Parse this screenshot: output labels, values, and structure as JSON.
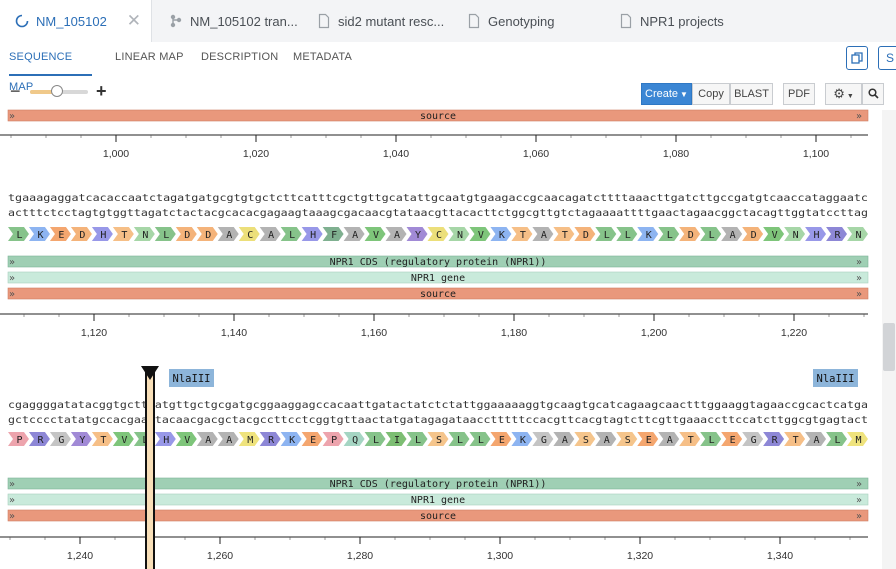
{
  "tabs": [
    {
      "label": "NM_105102",
      "icon": "circular-plasmid-icon",
      "active": true
    },
    {
      "label": "NM_105102 tran...",
      "icon": "branch-icon",
      "active": false
    },
    {
      "label": "sid2 mutant resc...",
      "icon": "document-icon",
      "active": false
    },
    {
      "label": "Genotyping",
      "icon": "document-icon",
      "active": false
    },
    {
      "label": "NPR1 projects",
      "icon": "document-icon",
      "active": false
    }
  ],
  "subnav": [
    "SEQUENCE MAP",
    "LINEAR MAP",
    "DESCRIPTION",
    "METADATA"
  ],
  "top_right": {
    "copy_icon": "copy-icon",
    "s_label": "S"
  },
  "toolbar": {
    "zoom_minus": "−",
    "zoom_plus": "+",
    "zoom_level": 0.47,
    "create": "Create",
    "copy": "Copy",
    "blast": "BLAST",
    "pdf": "PDF",
    "settings_icon": "gear-icon",
    "search_icon": "search-icon"
  },
  "colors": {
    "accent": "#2c6fb7",
    "source": "#e9987c",
    "cds": "#9fcfb4",
    "gene": "#c9eadb",
    "enzyme": "#8db5da"
  },
  "sequence_map": {
    "block0": {
      "annotations": [
        {
          "label": "source",
          "type": "source"
        }
      ],
      "ticks": [
        "1,000",
        "1,020",
        "1,040",
        "1,060",
        "1,080",
        "1,100"
      ]
    },
    "block1": {
      "top": "tgaaagaggatcacaccaatctagatgatgcgtgtgctcttcatttcgctgttgcatattgcaatgtgaagaccgcaacagatcttttaaacttgatcttgccgatgtcaaccataggaatc",
      "bottom": "actttctcctagtgtggttagatctactacgcacacgagaagtaaagcgacaacgtataacgttacacttctggcgttgtctagaaaattttgaactagaacggctacagttggtatccttag",
      "aa": [
        "L",
        "K",
        "E",
        "D",
        "H",
        "T",
        "N",
        "L",
        "D",
        "D",
        "A",
        "C",
        "A",
        "L",
        "H",
        "F",
        "A",
        "V",
        "A",
        "Y",
        "C",
        "N",
        "V",
        "K",
        "T",
        "A",
        "T",
        "D",
        "L",
        "L",
        "K",
        "L",
        "D",
        "L",
        "A",
        "D",
        "V",
        "N",
        "H",
        "R",
        "N"
      ],
      "annotations": [
        {
          "label": "NPR1 CDS (regulatory protein (NPR1))",
          "type": "cds"
        },
        {
          "label": "NPR1 gene",
          "type": "gene"
        },
        {
          "label": "source",
          "type": "source"
        }
      ],
      "ticks": [
        "1,120",
        "1,140",
        "1,160",
        "1,180",
        "1,200",
        "1,220"
      ]
    },
    "block2": {
      "enzymes": [
        "NlaIII",
        "NlaIII"
      ],
      "top": "cgaggggatatacggtgcttcatgttgctgcgatgcggaaggagccacaattgatactatctctattggaaaaaggtgcaagtgcatcagaagcaactttggaaggtagaaccgcactcatga",
      "bottom": "gctcccctatatgccacgaagtacaacgacgctacgccttcctcggtgttaactatgatagagataacctttttccacgttcacgtagtcttcgttgaaaccttccatcttggcgtgagtact",
      "aa": [
        "P",
        "R",
        "G",
        "Y",
        "T",
        "V",
        "L",
        "H",
        "V",
        "A",
        "A",
        "M",
        "R",
        "K",
        "E",
        "P",
        "Q",
        "L",
        "I",
        "L",
        "S",
        "L",
        "L",
        "E",
        "K",
        "G",
        "A",
        "S",
        "A",
        "S",
        "E",
        "A",
        "T",
        "L",
        "E",
        "G",
        "R",
        "T",
        "A",
        "L",
        "M"
      ],
      "annotations": [
        {
          "label": "NPR1 CDS (regulatory protein (NPR1))",
          "type": "cds"
        },
        {
          "label": "NPR1 gene",
          "type": "gene"
        },
        {
          "label": "source",
          "type": "source"
        }
      ],
      "ticks": [
        "1,240",
        "1,260",
        "1,280",
        "1,300",
        "1,320",
        "1,340"
      ]
    }
  }
}
